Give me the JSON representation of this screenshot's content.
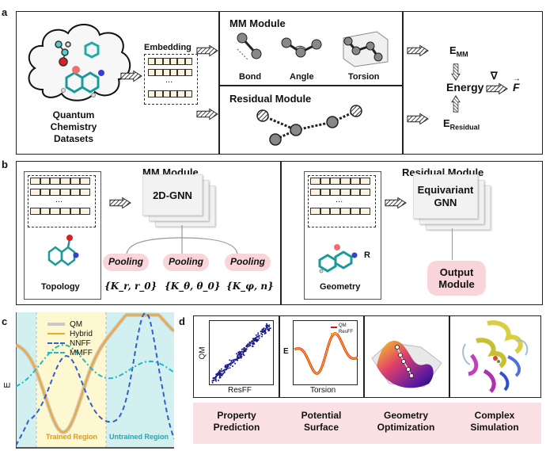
{
  "panel_a": {
    "label": "a",
    "datasets_label": "Quantum\nChemistry\nDatasets",
    "embedding_label": "Embedding",
    "embedding_ellipsis": "...",
    "mm_title": "MM Module",
    "mm_terms": [
      "Bond",
      "Angle",
      "Torsion"
    ],
    "residual_title": "Residual Module",
    "e_mm_main": "E",
    "e_mm_sub": "MM",
    "energy_label": "Energy",
    "e_res_main": "E",
    "e_res_sub": "Residual",
    "nabla": "∇",
    "force": "F"
  },
  "panel_b": {
    "label": "b",
    "mm_title": "MM Module",
    "gnn2d_label": "2D-GNN",
    "ellipsis": "...",
    "topology_label": "Topology",
    "pooling_labels": [
      "Pooling",
      "Pooling",
      "Pooling"
    ],
    "params": [
      "{K_r, r_0}",
      "{K_θ, θ_0}",
      "{K_φ, n}"
    ],
    "residual_title": "Residual Module",
    "equivariant_label": "Equivariant\nGNN",
    "geometry_label": "Geometry",
    "r_label": "R",
    "output_label": "Output\nModule"
  },
  "panel_c": {
    "label": "c",
    "ylabel": "E",
    "legend": [
      "QM",
      "Hybrid",
      "NNFF",
      "MMFF"
    ],
    "trained_region": "Trained Region",
    "untrained_region": "Untrained Region",
    "colors": {
      "QM": "#c8c8c8",
      "Hybrid": "#f5a623",
      "NNFF": "#2f5fd0",
      "MMFF": "#1fb8c8",
      "trained_bg": "#fdf8d0",
      "untrained_bg": "#d2f0ef"
    }
  },
  "panel_d": {
    "label": "d",
    "scatter_ylabel": "QM",
    "scatter_xlabel": "ResFF",
    "torsion_ylabel": "E",
    "torsion_xlabel": "Torsion",
    "torsion_legend": [
      "QM",
      "ResFF"
    ],
    "captions": [
      "Property\nPrediction",
      "Potential\nSurface",
      "Geometry\nOptimization",
      "Complex\nSimulation"
    ]
  }
}
